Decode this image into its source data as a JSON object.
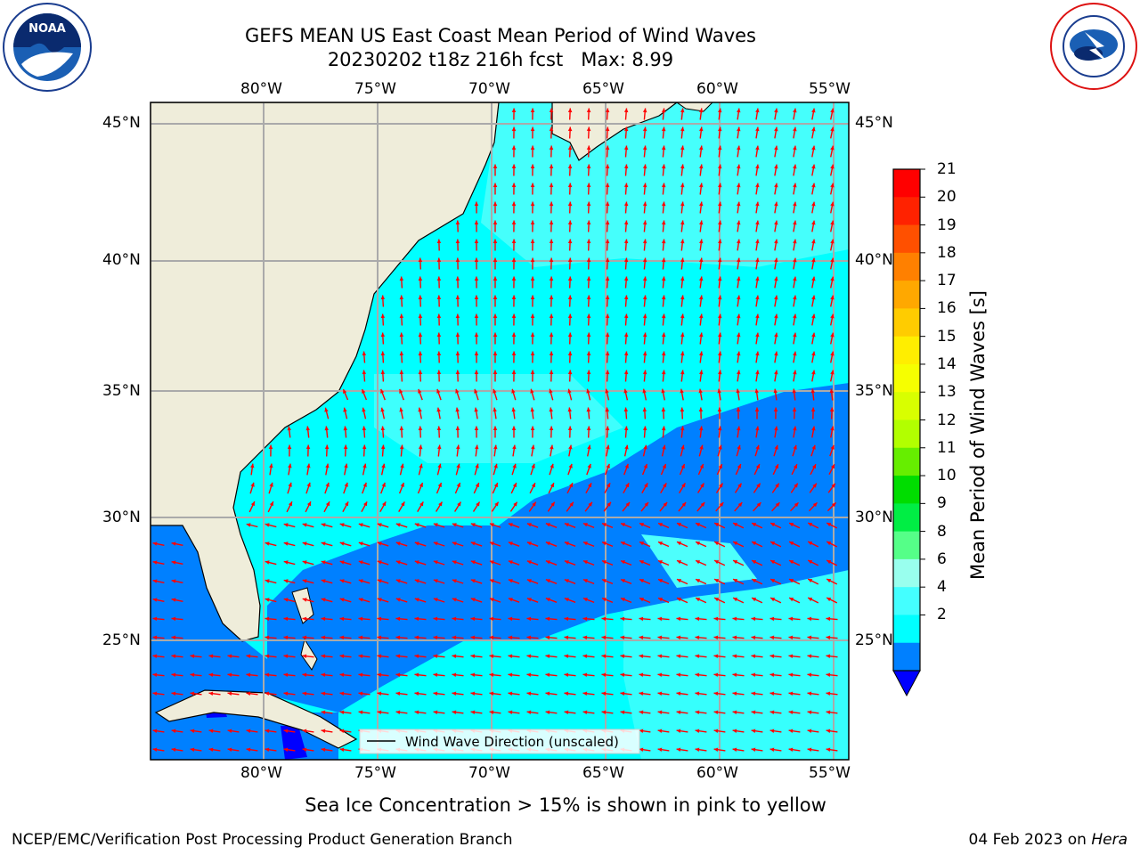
{
  "header": {
    "title_line1": "GEFS MEAN US East Coast Mean Period of Wind Waves",
    "title_line2": "20230202 t18z 216h fcst   Max: 8.99"
  },
  "logos": {
    "left": {
      "name": "NOAA",
      "text": "NOAA"
    },
    "right": {
      "name": "National Weather Service",
      "text": "NATIONAL WEATHER SERVICE"
    }
  },
  "map": {
    "lon_labels": [
      "80°W",
      "75°W",
      "70°W",
      "65°W",
      "60°W",
      "55°W"
    ],
    "lat_labels": [
      "45°N",
      "40°N",
      "35°N",
      "30°N",
      "25°N"
    ],
    "legend_label": "Wind Wave Direction (unscaled)",
    "colors": {
      "land": "#efedda",
      "ocean_6_8": "#00ffff",
      "ocean_4_6": "#0080ff",
      "ocean_8_9": "#4dfffc",
      "arrow": "#ff0000"
    }
  },
  "colorbar": {
    "label": "Mean Period of Wind Waves [s]",
    "ticks": [
      "21",
      "20",
      "19",
      "18",
      "17",
      "16",
      "15",
      "14",
      "13",
      "12",
      "11",
      "10",
      "9",
      "8",
      "6",
      "4",
      "2"
    ],
    "colors": [
      "#ff0000",
      "#ff2200",
      "#ff5000",
      "#ff8000",
      "#ffa800",
      "#ffcc00",
      "#ffee00",
      "#f6ff00",
      "#d8ff00",
      "#b2ff00",
      "#66ee00",
      "#00dd00",
      "#00ee44",
      "#55ff88",
      "#99ffee",
      "#44ffff",
      "#00ffff",
      "#0080ff",
      "#0000ff"
    ]
  },
  "footer": {
    "sea_ice_note": "Sea Ice Concentration > 15% is shown in pink to yellow",
    "left": "NCEP/EMC/Verification Post Processing Product Generation Branch",
    "date": "04 Feb 2023 on",
    "machine": "Hera"
  }
}
